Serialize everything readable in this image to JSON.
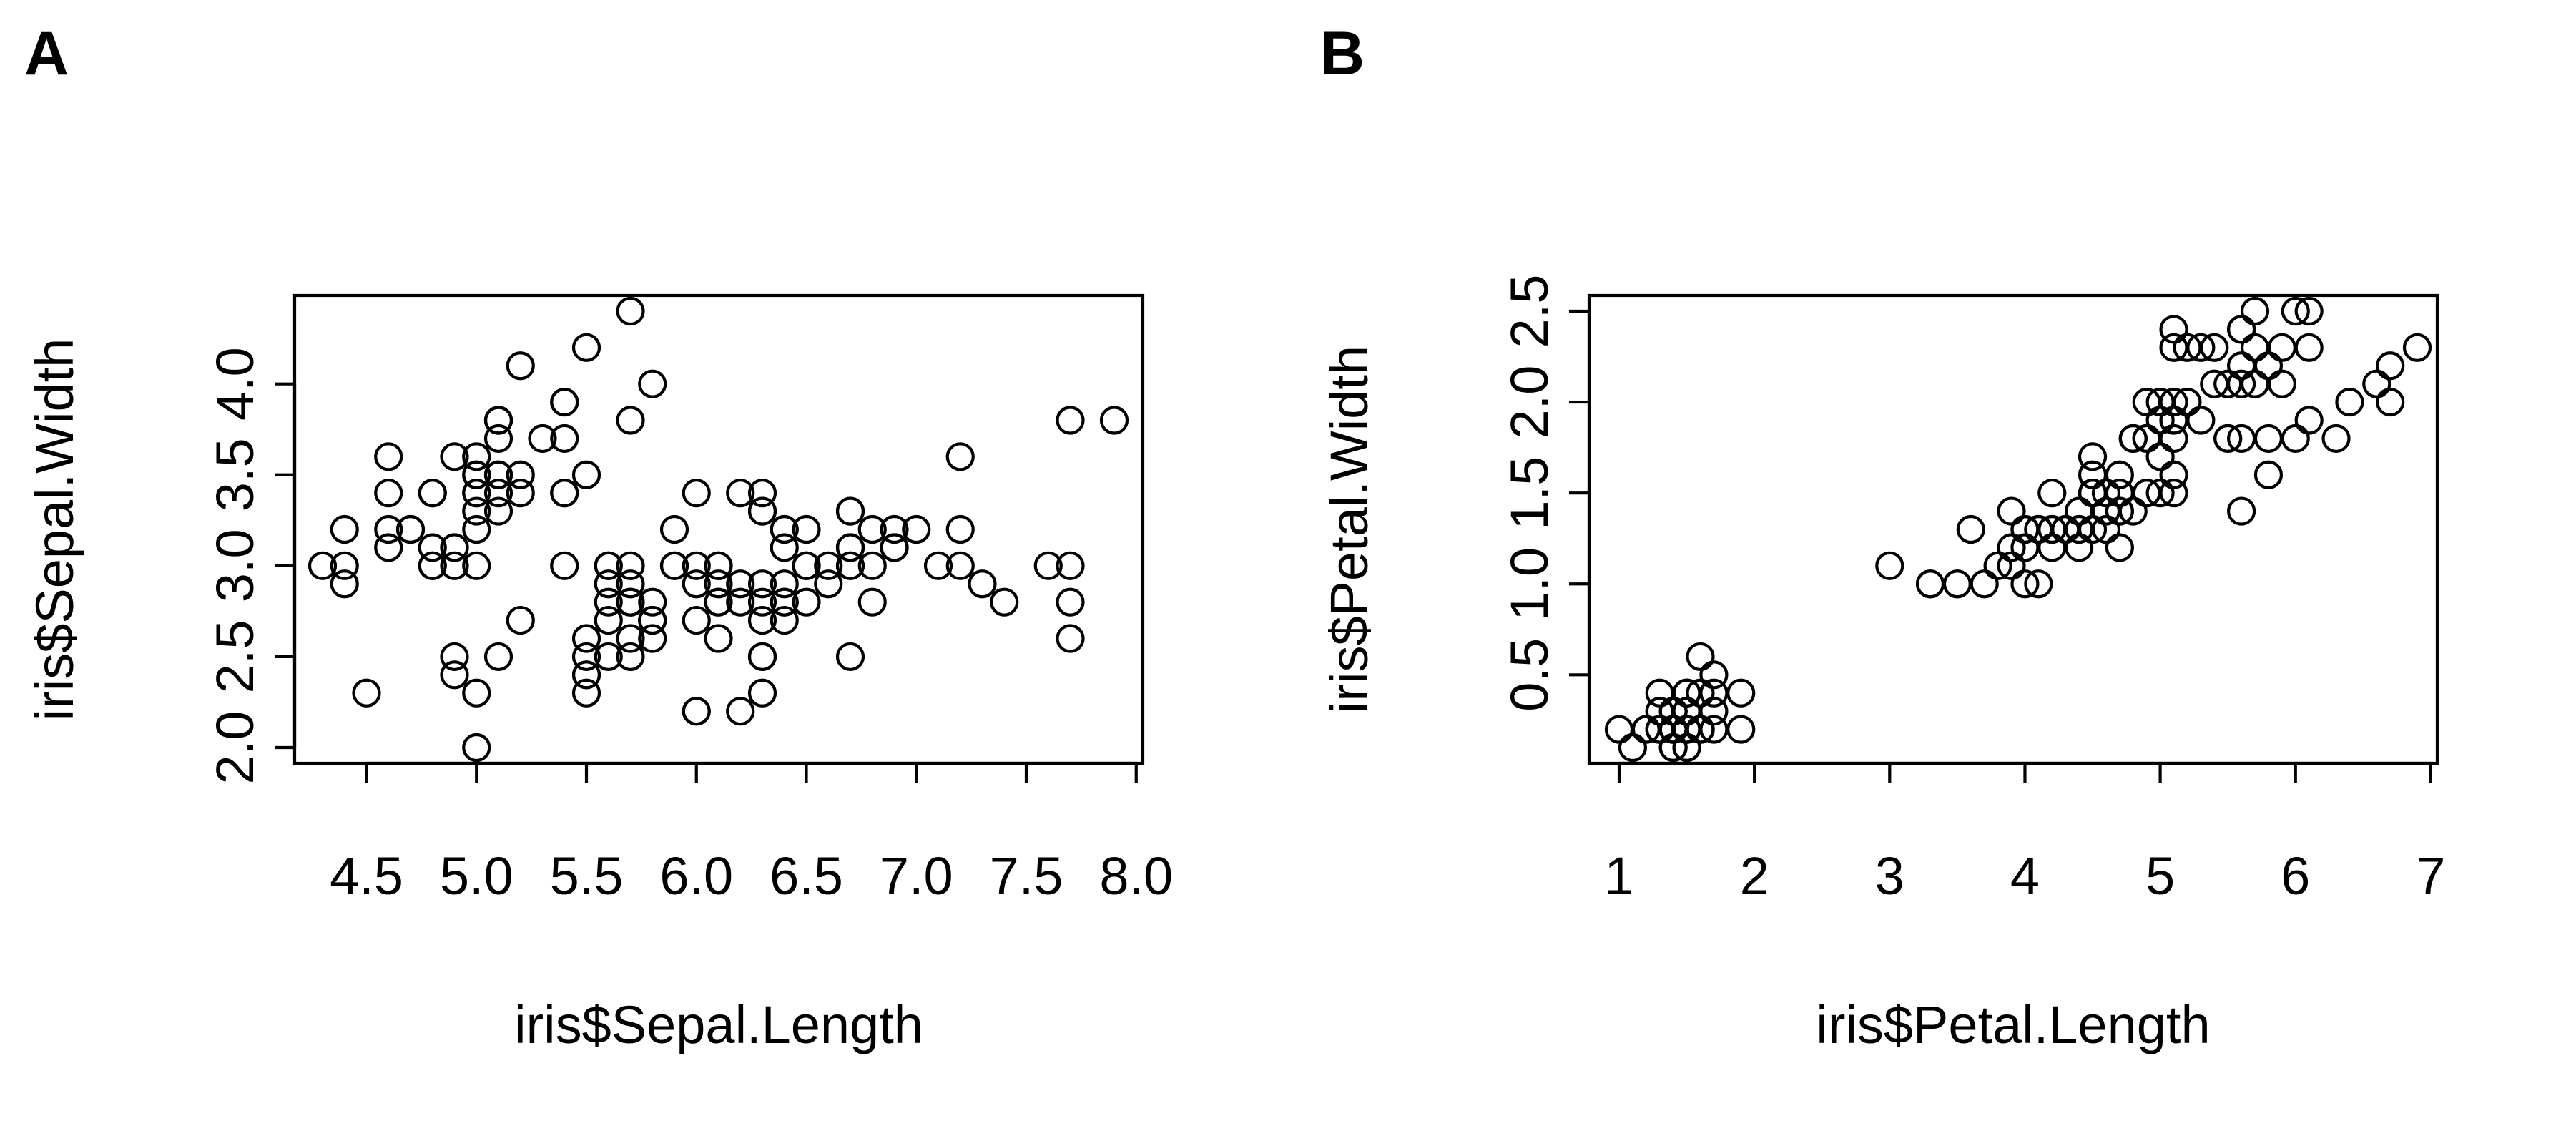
{
  "panels": [
    {
      "label": "A"
    },
    {
      "label": "B"
    }
  ],
  "chart_data": [
    {
      "type": "scatter",
      "title": "",
      "xlabel": "iris$Sepal.Length",
      "ylabel": "iris$Sepal.Width",
      "xlim": [
        4.3,
        7.9
      ],
      "ylim": [
        2.0,
        4.4
      ],
      "xticks": [
        "4.5",
        "5.0",
        "5.5",
        "6.0",
        "6.5",
        "7.0",
        "7.5",
        "8.0"
      ],
      "yticks": [
        "2.0",
        "2.5",
        "3.0",
        "3.5",
        "4.0"
      ],
      "series": [
        {
          "marker": "open-circle",
          "x": [
            5.1,
            4.9,
            4.7,
            4.6,
            5.0,
            5.4,
            4.6,
            5.0,
            4.4,
            4.9,
            5.4,
            4.8,
            4.8,
            4.3,
            5.8,
            5.7,
            5.4,
            5.1,
            5.7,
            5.1,
            5.4,
            5.1,
            4.6,
            5.1,
            4.8,
            5.0,
            5.0,
            5.2,
            5.2,
            4.7,
            4.8,
            5.4,
            5.2,
            5.5,
            4.9,
            5.0,
            5.5,
            4.9,
            4.4,
            5.1,
            5.0,
            4.5,
            4.4,
            5.0,
            5.1,
            4.8,
            5.1,
            4.6,
            5.3,
            5.0,
            7.0,
            6.4,
            6.9,
            5.5,
            6.5,
            5.7,
            6.3,
            4.9,
            6.6,
            5.2,
            5.0,
            5.9,
            6.0,
            6.1,
            5.6,
            6.7,
            5.6,
            5.8,
            6.2,
            5.6,
            5.9,
            6.1,
            6.3,
            6.1,
            6.4,
            6.6,
            6.8,
            6.7,
            6.0,
            5.7,
            5.5,
            5.5,
            5.8,
            6.0,
            5.4,
            6.0,
            6.7,
            6.3,
            5.6,
            5.5,
            5.5,
            6.1,
            5.8,
            5.0,
            5.6,
            5.7,
            5.7,
            6.2,
            5.1,
            5.7,
            6.3,
            5.8,
            7.1,
            6.3,
            6.5,
            7.6,
            4.9,
            7.3,
            6.7,
            7.2,
            6.5,
            6.4,
            6.8,
            5.7,
            5.8,
            6.4,
            6.5,
            7.7,
            7.7,
            6.0,
            6.9,
            5.6,
            7.7,
            6.3,
            6.7,
            7.2,
            6.2,
            6.1,
            6.4,
            7.2,
            7.4,
            7.9,
            6.4,
            6.3,
            6.1,
            7.7,
            6.3,
            6.4,
            6.0,
            6.9,
            6.7,
            6.9,
            5.8,
            6.8,
            6.7,
            6.7,
            6.3,
            6.5,
            6.2,
            5.9
          ],
          "y": [
            3.5,
            3.0,
            3.2,
            3.1,
            3.6,
            3.9,
            3.4,
            3.4,
            2.9,
            3.1,
            3.7,
            3.4,
            3.0,
            3.0,
            4.0,
            4.4,
            3.9,
            3.5,
            3.8,
            3.8,
            3.4,
            3.7,
            3.6,
            3.3,
            3.4,
            3.0,
            3.4,
            3.5,
            3.4,
            3.2,
            3.1,
            3.4,
            4.1,
            4.2,
            3.1,
            3.2,
            3.5,
            3.6,
            3.0,
            3.4,
            3.5,
            2.3,
            3.2,
            3.5,
            3.8,
            3.0,
            3.8,
            3.2,
            3.7,
            3.3,
            3.2,
            3.2,
            3.1,
            2.3,
            2.8,
            2.8,
            3.3,
            2.4,
            2.9,
            2.7,
            2.0,
            3.0,
            2.2,
            2.9,
            2.9,
            3.1,
            3.0,
            2.7,
            2.2,
            2.5,
            3.2,
            2.8,
            2.5,
            2.8,
            2.9,
            3.0,
            2.8,
            3.0,
            2.9,
            2.6,
            2.4,
            2.4,
            2.7,
            2.7,
            3.0,
            3.4,
            3.1,
            2.3,
            3.0,
            2.5,
            2.6,
            3.0,
            2.6,
            2.3,
            2.7,
            3.0,
            2.9,
            2.9,
            2.5,
            2.8,
            3.3,
            2.7,
            3.0,
            2.9,
            3.0,
            3.0,
            2.5,
            2.9,
            2.5,
            3.6,
            3.2,
            2.7,
            3.0,
            2.5,
            2.8,
            3.2,
            3.0,
            3.8,
            2.6,
            2.2,
            3.2,
            2.8,
            2.8,
            2.7,
            3.3,
            3.2,
            2.8,
            3.0,
            2.8,
            3.0,
            2.8,
            3.8,
            2.8,
            2.8,
            2.6,
            3.0,
            3.4,
            3.1,
            3.0,
            3.1,
            3.1,
            3.1,
            2.7,
            3.2,
            3.3,
            3.0,
            2.5,
            3.0,
            3.4,
            3.0
          ]
        }
      ]
    },
    {
      "type": "scatter",
      "title": "",
      "xlabel": "iris$Petal.Length",
      "ylabel": "iris$Petal.Width",
      "xlim": [
        1.0,
        6.9
      ],
      "ylim": [
        0.1,
        2.5
      ],
      "xticks": [
        "1",
        "2",
        "3",
        "4",
        "5",
        "6",
        "7"
      ],
      "yticks": [
        "0.5",
        "1.0",
        "1.5",
        "2.0",
        "2.5"
      ],
      "series": [
        {
          "marker": "open-circle",
          "x": [
            1.4,
            1.4,
            1.3,
            1.5,
            1.4,
            1.7,
            1.4,
            1.5,
            1.4,
            1.5,
            1.5,
            1.6,
            1.4,
            1.1,
            1.2,
            1.5,
            1.3,
            1.4,
            1.7,
            1.5,
            1.7,
            1.5,
            1.0,
            1.7,
            1.9,
            1.6,
            1.6,
            1.5,
            1.4,
            1.6,
            1.6,
            1.5,
            1.5,
            1.4,
            1.5,
            1.2,
            1.3,
            1.4,
            1.3,
            1.5,
            1.3,
            1.3,
            1.3,
            1.6,
            1.9,
            1.4,
            1.6,
            1.4,
            1.5,
            1.4,
            4.7,
            4.5,
            4.9,
            4.0,
            4.6,
            4.5,
            4.7,
            3.3,
            4.6,
            3.9,
            3.5,
            4.2,
            4.0,
            4.7,
            3.6,
            4.4,
            4.5,
            4.1,
            4.5,
            3.9,
            4.8,
            4.0,
            4.9,
            4.7,
            4.3,
            4.4,
            4.8,
            5.0,
            4.5,
            3.5,
            3.8,
            3.7,
            3.9,
            5.1,
            4.5,
            4.5,
            4.7,
            4.4,
            4.1,
            4.0,
            4.4,
            4.6,
            4.0,
            3.3,
            4.2,
            4.2,
            4.2,
            4.3,
            3.0,
            4.1,
            6.0,
            5.1,
            5.9,
            5.6,
            5.8,
            6.6,
            4.5,
            6.3,
            5.8,
            6.1,
            5.1,
            5.3,
            5.5,
            5.0,
            5.1,
            5.3,
            5.5,
            6.7,
            6.9,
            5.0,
            5.7,
            4.9,
            6.7,
            4.9,
            5.7,
            6.0,
            4.8,
            4.9,
            5.6,
            5.8,
            6.1,
            6.4,
            5.6,
            5.1,
            5.6,
            6.1,
            5.6,
            5.5,
            4.8,
            5.4,
            5.6,
            5.1,
            5.1,
            5.9,
            5.7,
            5.2,
            5.0,
            5.2,
            5.4,
            5.1
          ],
          "y": [
            0.2,
            0.2,
            0.2,
            0.2,
            0.2,
            0.4,
            0.3,
            0.2,
            0.2,
            0.1,
            0.2,
            0.2,
            0.1,
            0.1,
            0.2,
            0.4,
            0.4,
            0.3,
            0.3,
            0.3,
            0.2,
            0.4,
            0.2,
            0.5,
            0.2,
            0.2,
            0.4,
            0.2,
            0.2,
            0.2,
            0.2,
            0.4,
            0.1,
            0.2,
            0.2,
            0.2,
            0.2,
            0.1,
            0.2,
            0.2,
            0.3,
            0.3,
            0.2,
            0.6,
            0.4,
            0.3,
            0.2,
            0.2,
            0.2,
            0.2,
            1.4,
            1.5,
            1.5,
            1.3,
            1.5,
            1.3,
            1.6,
            1.0,
            1.3,
            1.4,
            1.0,
            1.5,
            1.0,
            1.4,
            1.3,
            1.4,
            1.5,
            1.0,
            1.5,
            1.1,
            1.8,
            1.3,
            1.5,
            1.2,
            1.3,
            1.4,
            1.4,
            1.7,
            1.5,
            1.0,
            1.1,
            1.0,
            1.2,
            1.6,
            1.5,
            1.6,
            1.5,
            1.3,
            1.3,
            1.3,
            1.2,
            1.4,
            1.2,
            1.0,
            1.3,
            1.2,
            1.3,
            1.3,
            1.1,
            1.3,
            2.5,
            1.9,
            2.1,
            1.8,
            2.2,
            2.1,
            1.7,
            1.8,
            1.8,
            2.5,
            2.0,
            1.9,
            2.1,
            2.0,
            2.4,
            2.3,
            1.8,
            2.2,
            2.3,
            1.5,
            2.3,
            2.0,
            2.0,
            1.8,
            2.1,
            1.8,
            1.8,
            1.8,
            2.1,
            1.6,
            1.9,
            2.0,
            2.2,
            1.5,
            1.4,
            2.3,
            2.4,
            1.8,
            1.8,
            2.1,
            2.4,
            2.3,
            1.9,
            2.3,
            2.5,
            2.3,
            1.9,
            2.0,
            2.3,
            1.8
          ]
        }
      ]
    }
  ]
}
